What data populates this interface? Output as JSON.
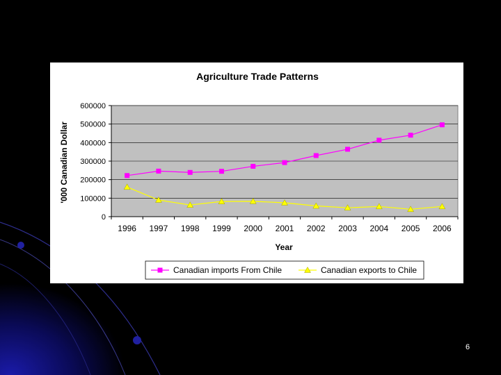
{
  "slide": {
    "number": "6"
  },
  "chart_data": {
    "type": "line",
    "title": "Agriculture Trade Patterns",
    "xlabel": "Year",
    "ylabel": "'000 Canadian Dollar",
    "categories": [
      "1996",
      "1997",
      "1998",
      "1999",
      "2000",
      "2001",
      "2002",
      "2003",
      "2004",
      "2005",
      "2006"
    ],
    "y_ticks": [
      "0",
      "100000",
      "200000",
      "300000",
      "400000",
      "500000",
      "600000"
    ],
    "ylim": [
      0,
      600000
    ],
    "grid": true,
    "legend_position": "bottom",
    "plot_background": "#c0c0c0",
    "series": [
      {
        "name": "Canadian imports From Chile",
        "values": [
          222000,
          246000,
          239000,
          245000,
          272000,
          292000,
          330000,
          364000,
          413000,
          440000,
          496000
        ],
        "color": "#ff00ff",
        "marker": "square"
      },
      {
        "name": "Canadian exports to Chile",
        "values": [
          160000,
          90000,
          63000,
          82000,
          83000,
          75000,
          58000,
          48000,
          55000,
          40000,
          55000
        ],
        "color": "#ffff00",
        "marker": "triangle"
      }
    ]
  }
}
